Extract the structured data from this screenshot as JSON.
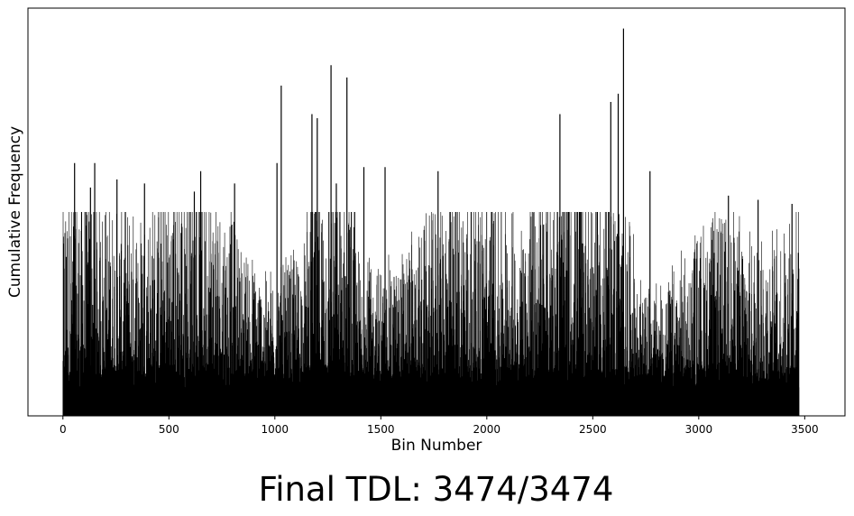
{
  "chart_data": {
    "type": "bar",
    "title": "",
    "xlabel": "Bin Number",
    "ylabel": "Cumulative Frequency",
    "xlim": [
      -165,
      3690
    ],
    "ylim": [
      0,
      1.0
    ],
    "x_ticks": [
      0,
      500,
      1000,
      1500,
      2000,
      2500,
      3000,
      3500
    ],
    "y_ticks": [],
    "grid": false,
    "bar_color": "#000000",
    "bin_count": 3474,
    "values_note": "",
    "peaks": [
      {
        "x": 15,
        "y": 0.39
      },
      {
        "x": 55,
        "y": 0.62
      },
      {
        "x": 130,
        "y": 0.56
      },
      {
        "x": 150,
        "y": 0.62
      },
      {
        "x": 255,
        "y": 0.58
      },
      {
        "x": 385,
        "y": 0.57
      },
      {
        "x": 620,
        "y": 0.55
      },
      {
        "x": 650,
        "y": 0.6
      },
      {
        "x": 810,
        "y": 0.57
      },
      {
        "x": 1010,
        "y": 0.62
      },
      {
        "x": 1030,
        "y": 0.81
      },
      {
        "x": 1175,
        "y": 0.74
      },
      {
        "x": 1200,
        "y": 0.73
      },
      {
        "x": 1265,
        "y": 0.86
      },
      {
        "x": 1290,
        "y": 0.57
      },
      {
        "x": 1340,
        "y": 0.83
      },
      {
        "x": 1420,
        "y": 0.61
      },
      {
        "x": 1520,
        "y": 0.61
      },
      {
        "x": 1770,
        "y": 0.6
      },
      {
        "x": 2015,
        "y": 0.43
      },
      {
        "x": 2345,
        "y": 0.74
      },
      {
        "x": 2585,
        "y": 0.77
      },
      {
        "x": 2620,
        "y": 0.79
      },
      {
        "x": 2645,
        "y": 0.95
      },
      {
        "x": 2770,
        "y": 0.6
      },
      {
        "x": 3140,
        "y": 0.54
      },
      {
        "x": 3280,
        "y": 0.53
      },
      {
        "x": 3440,
        "y": 0.52
      },
      {
        "x": 3470,
        "y": 0.4
      }
    ]
  },
  "caption": "Final TDL: 3474/3474"
}
